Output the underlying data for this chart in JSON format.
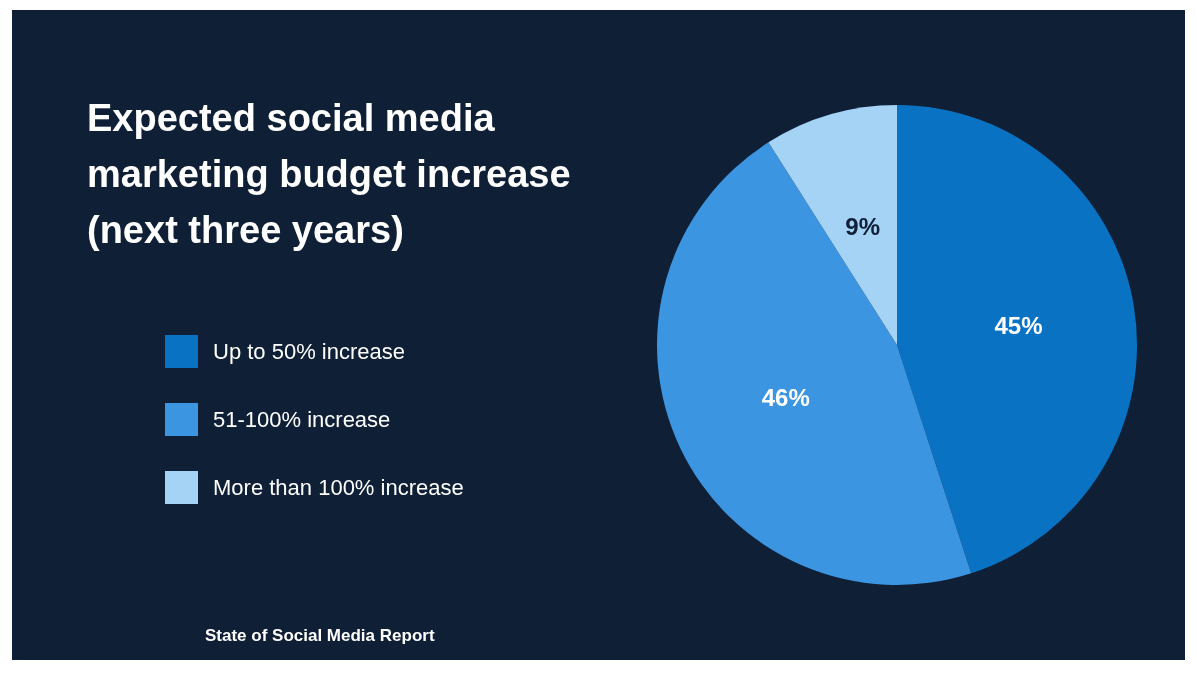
{
  "chart_data": {
    "type": "pie",
    "title": "Expected social media\nmarketing budget increase\n(next three years)",
    "categories": [
      "Up to 50% increase",
      "51-100% increase",
      "More than 100% increase"
    ],
    "values": [
      45,
      46,
      9
    ],
    "value_labels": [
      "45%",
      "46%",
      "9%"
    ],
    "colors": [
      "#0a72c2",
      "#3b95e0",
      "#a5d3f6"
    ],
    "legend": "left",
    "annotations": [
      "State of Social Media Report"
    ]
  }
}
